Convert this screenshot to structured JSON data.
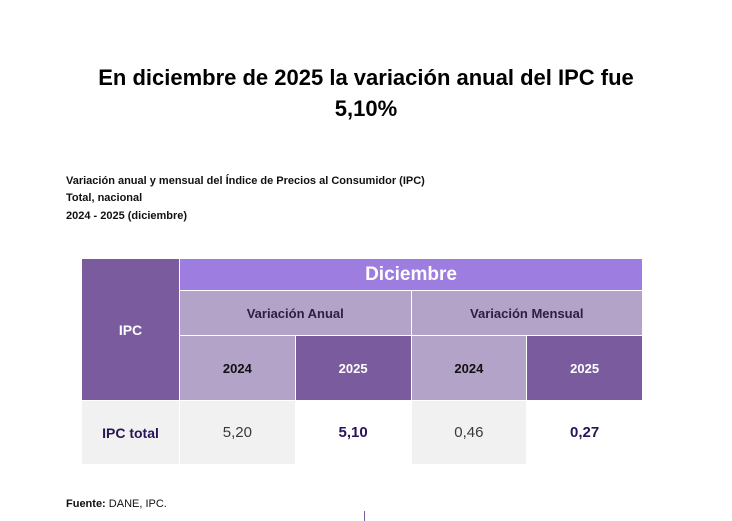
{
  "headline": {
    "line1": "En diciembre de 2025 la variación anual del IPC fue",
    "line2": "5,10%"
  },
  "subtitle": {
    "line1": "Variación anual y mensual del Índice de Precios al Consumidor (IPC)",
    "line2": "Total, nacional",
    "line3": "2024 - 2025 (diciembre)"
  },
  "table": {
    "corner_label": "IPC",
    "period_header": "Diciembre",
    "groups": [
      "Variación Anual",
      "Variación Mensual"
    ],
    "years": [
      "2024",
      "2025",
      "2024",
      "2025"
    ],
    "rows": [
      {
        "label": "IPC total",
        "values": [
          "5,20",
          "5,10",
          "0,46",
          "0,27"
        ]
      }
    ]
  },
  "source": {
    "label": "Fuente:",
    "text": " DANE, IPC."
  },
  "colors": {
    "dark_purple": "#7a5c9e",
    "header_purple": "#9d7de0",
    "light_purple": "#b3a3c9",
    "row_bg": "#f1f1f1",
    "emphasis_text": "#2a1458"
  }
}
